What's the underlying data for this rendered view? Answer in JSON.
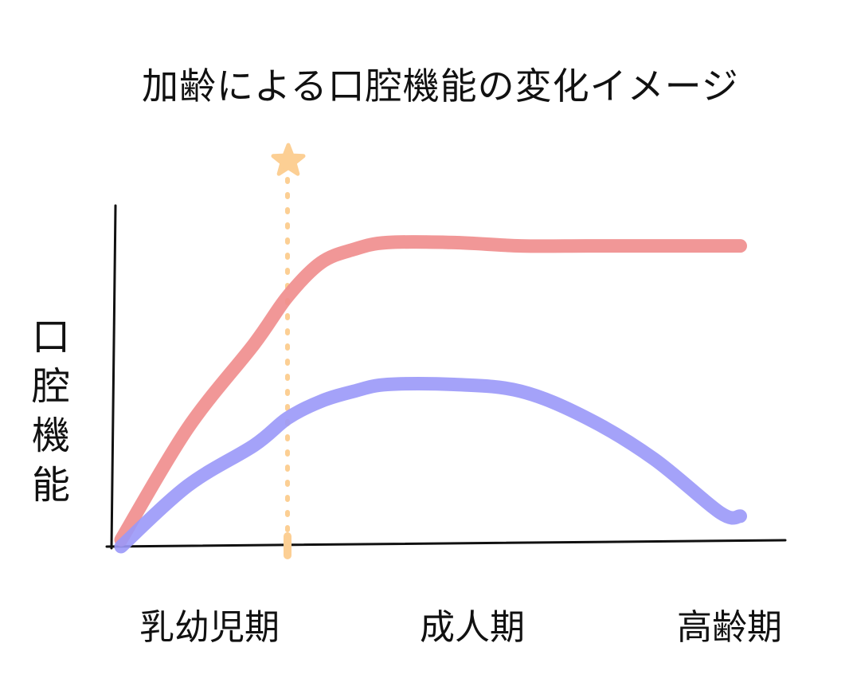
{
  "chart_data": {
    "type": "line",
    "title": "加齢による口腔機能の変化イメージ",
    "xlabel": "",
    "ylabel": "口腔機能",
    "categories": [
      "乳幼児期",
      "成人期",
      "高齢期"
    ],
    "x": [
      0,
      0.1,
      0.2,
      0.25,
      0.3,
      0.35,
      0.4,
      0.5,
      0.6,
      0.7,
      0.8,
      0.9,
      0.93
    ],
    "series": [
      {
        "color": "#f08c8c",
        "values": [
          0.02,
          0.35,
          0.6,
          0.74,
          0.84,
          0.88,
          0.9,
          0.9,
          0.89,
          0.89,
          0.89,
          0.89,
          0.89
        ]
      },
      {
        "color": "#9a98f8",
        "values": [
          0.0,
          0.18,
          0.3,
          0.38,
          0.43,
          0.46,
          0.48,
          0.48,
          0.46,
          0.38,
          0.26,
          0.1,
          0.09
        ]
      }
    ],
    "marker": {
      "x": 0.25,
      "color": "#fccf94",
      "symbol": "star"
    },
    "xlim": [
      0,
      1
    ],
    "ylim": [
      0,
      1
    ],
    "grid": false,
    "legend": "none"
  }
}
